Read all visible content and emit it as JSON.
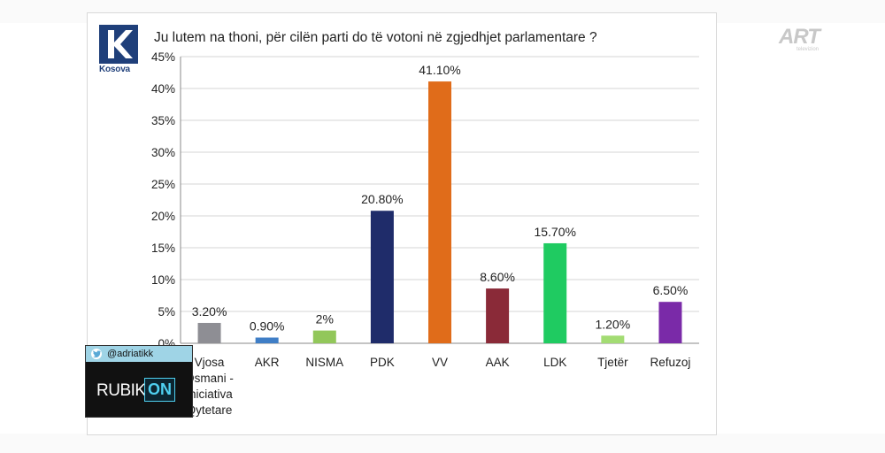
{
  "title": "Ju lutem na thoni, për cilën parti do të votoni në zgjedhjet parlamentare ?",
  "broadcaster_logo": {
    "text": "Kosova"
  },
  "watermark": {
    "text": "ART",
    "subtext": "televizion"
  },
  "overlay": {
    "handle": "@adriatikk",
    "brand": "RUBIK",
    "brand_suffix": "ON",
    "twitter_icon": "twitter-icon"
  },
  "chart_data": {
    "type": "bar",
    "categories": [
      "Vjosa Osmani - Iniciativa Qytetare",
      "AKR",
      "NISMA",
      "PDK",
      "VV",
      "AAK",
      "LDK",
      "Tjetër",
      "Refuzoj"
    ],
    "category_lines": [
      [
        "Vjosa",
        "Osmani -",
        "Iniciativa",
        "Qytetare"
      ],
      [
        "AKR"
      ],
      [
        "NISMA"
      ],
      [
        "PDK"
      ],
      [
        "VV"
      ],
      [
        "AAK"
      ],
      [
        "LDK"
      ],
      [
        "Tjetër"
      ],
      [
        "Refuzoj"
      ]
    ],
    "values": [
      3.2,
      0.9,
      2,
      20.8,
      41.1,
      8.6,
      15.7,
      1.2,
      6.5
    ],
    "labels": [
      "3.20%",
      "0.90%",
      "2%",
      "20.80%",
      "41.10%",
      "8.60%",
      "15.70%",
      "1.20%",
      "6.50%"
    ],
    "colors": [
      "#8e8e94",
      "#3f7ec6",
      "#92c75a",
      "#1f2c6a",
      "#e06c1a",
      "#8a2a38",
      "#1fcb61",
      "#a3dc73",
      "#7a2aa8"
    ],
    "yticks": [
      "0%",
      "5%",
      "10%",
      "15%",
      "20%",
      "25%",
      "30%",
      "35%",
      "40%",
      "45%"
    ],
    "ylim": [
      0,
      45
    ],
    "grid": true,
    "legend": "none"
  }
}
